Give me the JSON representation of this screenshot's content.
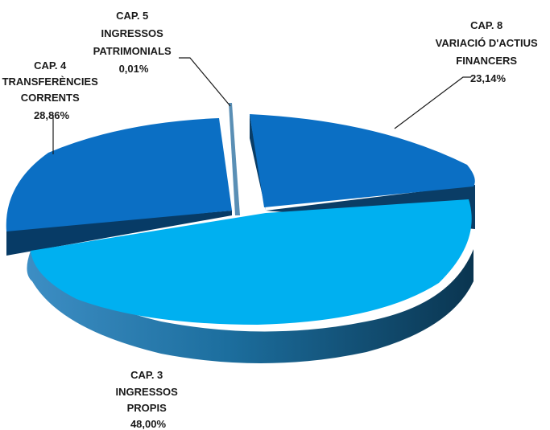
{
  "chart_data": {
    "type": "pie",
    "slices": [
      {
        "lines": [
          "CAP. 3",
          "INGRESSOS",
          "PROPIS"
        ],
        "value_label": "48,00%",
        "value": 48.0,
        "color": "#00b0f0"
      },
      {
        "lines": [
          "CAP. 4",
          "TRANSFERÈNCIES",
          "CORRENTS"
        ],
        "value_label": "28,86%",
        "value": 28.86,
        "color": "#0b6fc4"
      },
      {
        "lines": [
          "CAP. 5",
          "INGRESSOS",
          "PATRIMONIALS"
        ],
        "value_label": "0,01%",
        "value": 0.01,
        "color": "#5a8fb5"
      },
      {
        "lines": [
          "CAP. 8",
          "VARIACIÓ D'ACTIUS",
          "FINANCERS"
        ],
        "value_label": "23,14%",
        "value": 23.14,
        "color": "#0b6fc4"
      }
    ],
    "legend": "none",
    "labels": "outside-with-leaders"
  }
}
